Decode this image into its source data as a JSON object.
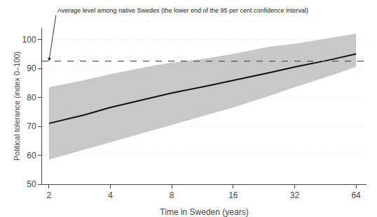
{
  "chart_data": {
    "type": "line",
    "x_label": "Time in Sweden (years)",
    "y_label": "Political tolerance (index 0–100)",
    "x": [
      2,
      3,
      4,
      6,
      8,
      12,
      16,
      24,
      32,
      48,
      64
    ],
    "values": [
      71.0,
      74.0,
      76.5,
      79.5,
      81.5,
      84.0,
      85.8,
      88.5,
      90.5,
      93.0,
      95.0
    ],
    "ci_lower": [
      58.5,
      62.0,
      64.5,
      68.0,
      70.5,
      74.0,
      76.5,
      80.5,
      83.5,
      87.5,
      90.5
    ],
    "ci_upper": [
      83.5,
      86.0,
      88.0,
      90.5,
      92.0,
      93.5,
      95.0,
      97.5,
      98.5,
      100.5,
      102.0
    ],
    "color": "#111111",
    "ci_color": "#c8c8c8",
    "reference_line": 92.5,
    "reference_line_color": "#555555",
    "annotation": "Average level among native Swedes (the lower end of the 95 per cent confidence interval)",
    "log": "x",
    "xlim": [
      1.85,
      72
    ],
    "xticks": [
      2,
      4,
      8,
      16,
      32,
      64
    ],
    "ylim": [
      50,
      104
    ],
    "yticks": [
      50,
      60,
      70,
      80,
      90,
      100
    ],
    "grid": "y"
  }
}
